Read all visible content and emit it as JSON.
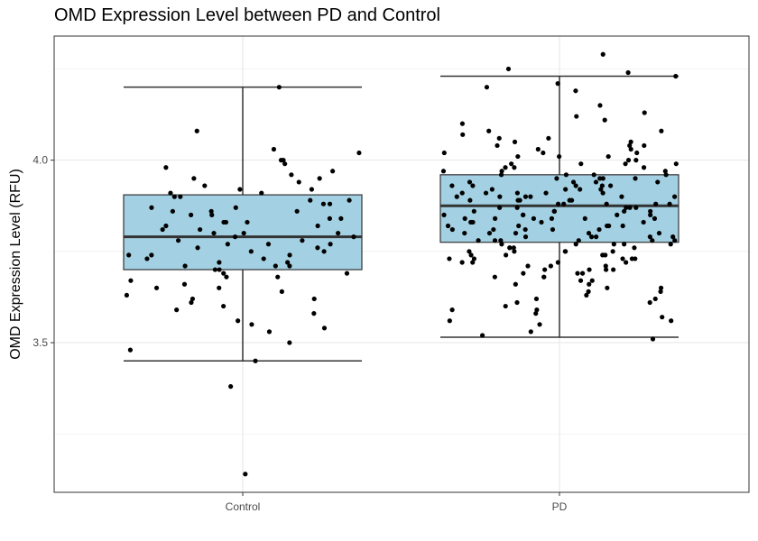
{
  "chart_data": {
    "type": "box",
    "title": "OMD Expression Level between PD and Control",
    "xlabel": "",
    "ylabel": "OMD Expression Level (RFU)",
    "categories": [
      "Control",
      "PD"
    ],
    "y_ticks": [
      3.5,
      4.0
    ],
    "y_tick_labels": [
      "3.5",
      "4.0"
    ],
    "ylim": [
      3.09,
      4.34
    ],
    "grid": true,
    "box_fill": "#a3d0e2",
    "point_color": "#000000",
    "boxes": [
      {
        "name": "Control",
        "whisker_low": 3.45,
        "q1": 3.7,
        "median": 3.79,
        "q3": 3.905,
        "whisker_high": 4.2
      },
      {
        "name": "PD",
        "whisker_low": 3.515,
        "q1": 3.775,
        "median": 3.875,
        "q3": 3.96,
        "whisker_high": 4.23
      }
    ],
    "points": [
      {
        "group": "Control",
        "y": [
          4.2,
          4.08,
          4.03,
          4.02,
          3.99,
          4.0,
          3.98,
          3.97,
          3.96,
          3.95,
          3.94,
          3.93,
          3.92,
          3.91,
          3.91,
          3.9,
          3.9,
          3.89,
          3.88,
          3.88,
          3.87,
          3.87,
          3.86,
          3.86,
          3.85,
          3.85,
          3.84,
          3.84,
          3.83,
          3.83,
          3.82,
          3.82,
          3.81,
          3.81,
          3.8,
          3.8,
          3.79,
          3.79,
          3.78,
          3.78,
          3.77,
          3.77,
          3.76,
          3.76,
          3.75,
          3.75,
          3.74,
          3.74,
          3.73,
          3.73,
          3.72,
          3.72,
          3.71,
          3.71,
          3.7,
          3.7,
          3.69,
          3.69,
          3.68,
          3.67,
          3.66,
          3.65,
          3.64,
          3.63,
          3.62,
          3.61,
          3.6,
          3.59,
          3.58,
          3.56,
          3.55,
          3.54,
          3.53,
          3.5,
          3.48,
          3.45,
          3.38,
          3.14,
          4.0,
          3.95,
          3.92,
          3.89,
          3.86,
          3.83,
          3.8,
          3.77,
          3.74,
          3.71,
          3.68,
          3.65,
          3.62
        ]
      },
      {
        "group": "PD",
        "y": [
          4.29,
          4.25,
          4.24,
          4.23,
          4.21,
          4.2,
          4.19,
          4.15,
          4.13,
          4.12,
          4.11,
          4.1,
          4.08,
          4.07,
          4.06,
          4.06,
          4.05,
          4.05,
          4.04,
          4.04,
          4.03,
          4.03,
          4.02,
          4.02,
          4.01,
          4.01,
          4.0,
          4.0,
          3.99,
          3.99,
          3.98,
          3.98,
          3.97,
          3.97,
          3.96,
          3.96,
          3.95,
          3.95,
          3.95,
          3.94,
          3.94,
          3.93,
          3.93,
          3.93,
          3.92,
          3.92,
          3.91,
          3.91,
          3.91,
          3.9,
          3.9,
          3.9,
          3.89,
          3.89,
          3.89,
          3.88,
          3.88,
          3.88,
          3.87,
          3.87,
          3.87,
          3.86,
          3.86,
          3.86,
          3.85,
          3.85,
          3.85,
          3.84,
          3.84,
          3.84,
          3.83,
          3.83,
          3.83,
          3.82,
          3.82,
          3.82,
          3.81,
          3.81,
          3.81,
          3.8,
          3.8,
          3.8,
          3.79,
          3.79,
          3.79,
          3.78,
          3.78,
          3.78,
          3.77,
          3.77,
          3.77,
          3.76,
          3.76,
          3.76,
          3.75,
          3.75,
          3.75,
          3.74,
          3.74,
          3.74,
          3.73,
          3.73,
          3.73,
          3.72,
          3.72,
          3.71,
          3.71,
          3.7,
          3.7,
          3.69,
          3.69,
          3.68,
          3.68,
          3.67,
          3.66,
          3.65,
          3.64,
          3.63,
          3.62,
          3.61,
          3.6,
          3.59,
          3.59,
          3.58,
          3.57,
          3.56,
          3.56,
          3.55,
          3.53,
          3.52,
          3.51,
          3.99,
          3.96,
          3.93,
          3.9,
          3.87,
          3.84,
          3.81,
          3.78,
          3.75,
          3.72,
          3.69,
          3.66,
          3.94,
          3.91,
          3.88,
          3.85,
          3.82,
          3.79,
          3.76,
          3.73,
          3.7,
          3.97,
          3.92,
          3.86,
          3.8,
          3.74,
          3.68,
          3.62,
          4.04,
          3.98,
          3.89,
          3.83,
          3.77,
          3.71,
          3.65,
          4.08,
          4.02,
          3.95,
          3.9,
          3.84,
          3.78,
          3.72,
          3.87,
          3.85,
          3.86,
          3.88,
          3.9,
          3.82,
          3.8,
          3.84,
          3.91,
          3.93,
          3.96,
          3.99,
          4.01,
          3.79,
          3.77,
          3.75,
          3.73,
          3.7,
          3.67,
          3.64,
          3.61,
          3.94,
          3.92,
          3.89,
          3.86,
          3.83,
          3.81,
          3.78
        ]
      }
    ]
  }
}
